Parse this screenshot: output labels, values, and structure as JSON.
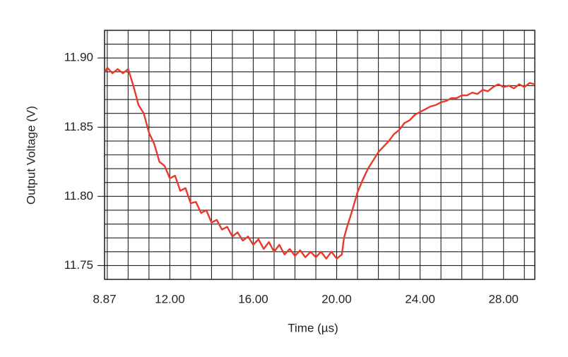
{
  "chart_data": {
    "type": "line",
    "xlabel": "Time (µs)",
    "ylabel": "Output Voltage (V)",
    "xlim": [
      8.87,
      29.5
    ],
    "ylim": [
      11.74,
      11.92
    ],
    "xticks": [
      8.87,
      {
        "value": 12,
        "label": "12.00"
      },
      {
        "value": 16,
        "label": "16.00"
      },
      {
        "value": 20,
        "label": "20.00"
      },
      {
        "value": 24,
        "label": "24.00"
      },
      {
        "value": 28,
        "label": "28.00"
      }
    ],
    "yticks": [
      11.75,
      {
        "value": 11.8,
        "label": "11.80"
      },
      11.85,
      {
        "value": 11.9,
        "label": "11.90"
      }
    ],
    "x_minor_grid": [
      9,
      10,
      11,
      13,
      14,
      15,
      17,
      18,
      19,
      21,
      22,
      23,
      25,
      26,
      27,
      29
    ],
    "y_minor_grid": [
      11.76,
      11.77,
      11.78,
      11.79,
      11.81,
      11.82,
      11.83,
      11.84,
      11.86,
      11.87,
      11.88,
      11.89,
      11.91
    ],
    "grid": true,
    "x": [
      8.9,
      9.0,
      9.25,
      9.5,
      9.75,
      10.0,
      10.25,
      10.5,
      10.75,
      11.0,
      11.25,
      11.5,
      11.75,
      12.0,
      12.25,
      12.5,
      12.75,
      13.0,
      13.25,
      13.5,
      13.75,
      14.0,
      14.25,
      14.5,
      14.75,
      15.0,
      15.25,
      15.5,
      15.75,
      16.0,
      16.25,
      16.5,
      16.75,
      17.0,
      17.25,
      17.5,
      17.75,
      18.0,
      18.25,
      18.5,
      18.75,
      19.0,
      19.25,
      19.5,
      19.75,
      20.0,
      20.25,
      20.35,
      20.5,
      20.75,
      21.0,
      21.25,
      21.5,
      21.75,
      22.0,
      22.25,
      22.5,
      22.75,
      23.0,
      23.25,
      23.5,
      23.75,
      24.0,
      24.25,
      24.5,
      24.75,
      25.0,
      25.25,
      25.5,
      25.75,
      26.0,
      26.25,
      26.5,
      26.75,
      27.0,
      27.25,
      27.5,
      27.75,
      28.0,
      28.25,
      28.5,
      28.75,
      29.0,
      29.25,
      29.5
    ],
    "series": [
      {
        "name": "Output Voltage",
        "color": "#e8392b",
        "values": [
          11.89,
          11.893,
          11.889,
          11.892,
          11.889,
          11.892,
          11.88,
          11.866,
          11.86,
          11.846,
          11.838,
          11.825,
          11.822,
          11.813,
          11.815,
          11.804,
          11.806,
          11.795,
          11.796,
          11.788,
          11.79,
          11.781,
          11.783,
          11.776,
          11.778,
          11.771,
          11.774,
          11.768,
          11.771,
          11.765,
          11.769,
          11.762,
          11.767,
          11.76,
          11.765,
          11.758,
          11.762,
          11.757,
          11.761,
          11.756,
          11.76,
          11.756,
          11.76,
          11.755,
          11.76,
          11.755,
          11.758,
          11.77,
          11.778,
          11.79,
          11.803,
          11.812,
          11.82,
          11.826,
          11.832,
          11.836,
          11.84,
          11.845,
          11.848,
          11.853,
          11.855,
          11.859,
          11.861,
          11.863,
          11.865,
          11.866,
          11.868,
          11.869,
          11.871,
          11.871,
          11.873,
          11.873,
          11.875,
          11.874,
          11.877,
          11.876,
          11.879,
          11.881,
          11.879,
          11.88,
          11.878,
          11.881,
          11.879,
          11.882,
          11.881
        ]
      }
    ]
  }
}
